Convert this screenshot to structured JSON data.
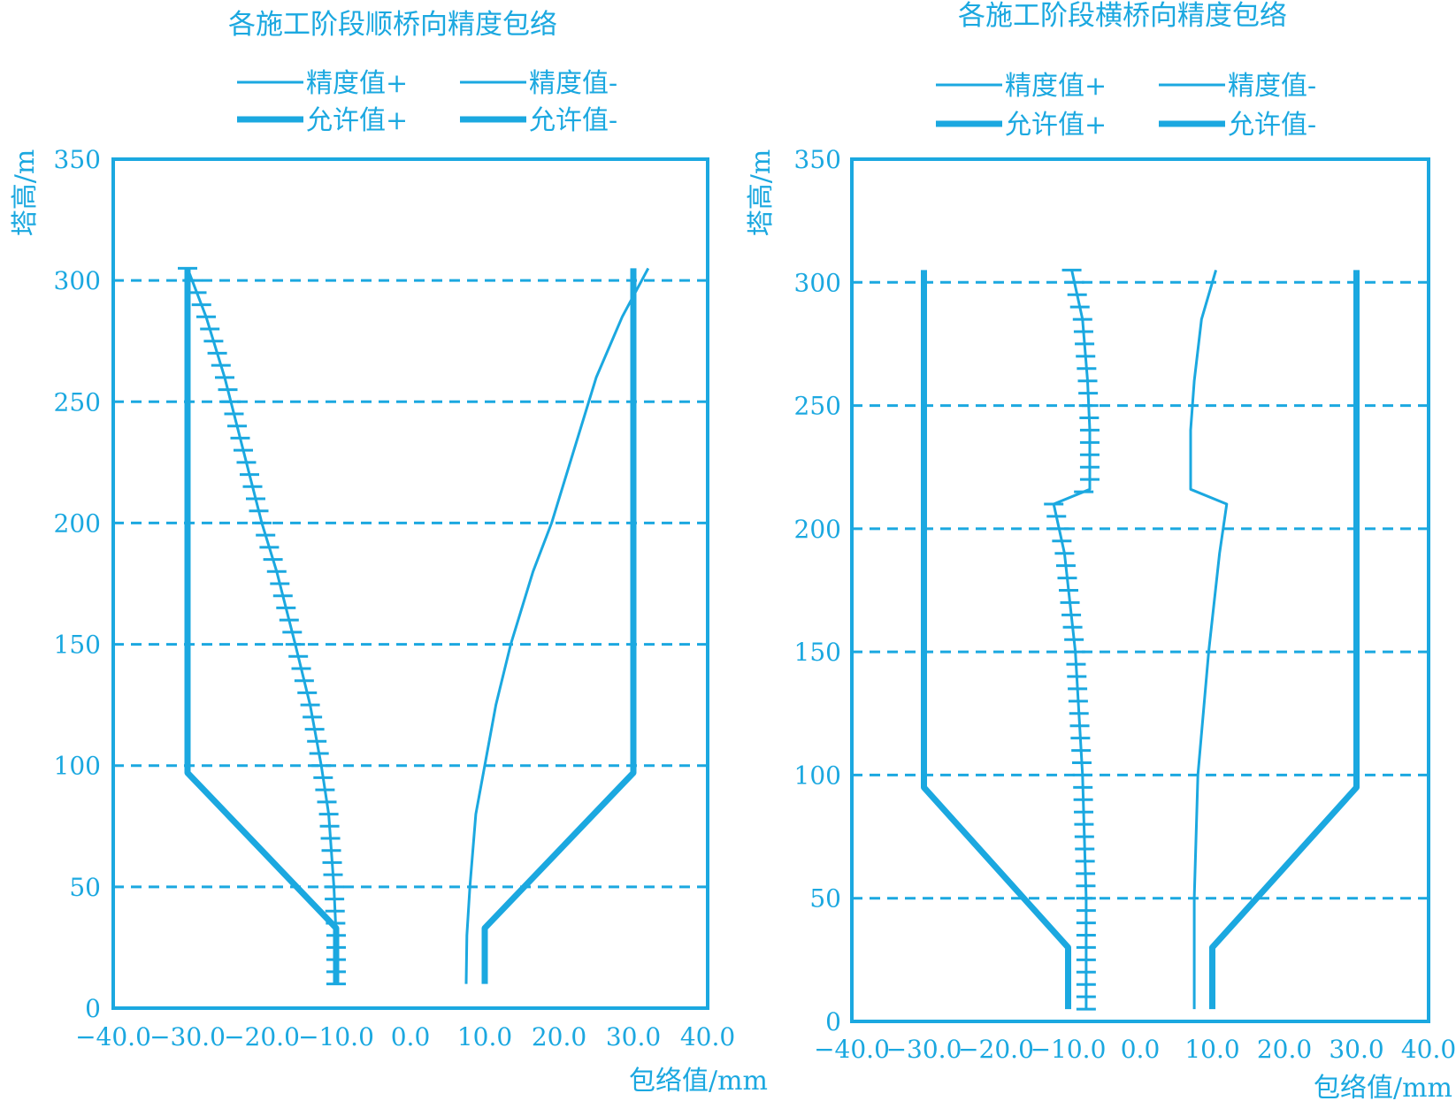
{
  "accent_color": "#1ba8e0",
  "chart_data": [
    {
      "type": "line",
      "title": "各施工阶段顺桥向精度包络",
      "xlabel": "包络值/mm",
      "ylabel": "塔高/m",
      "xlim": [
        -40,
        40
      ],
      "ylim": [
        0,
        350
      ],
      "x_ticks": [
        "-40.0",
        "-30.0",
        "-20.0",
        "-10.0",
        "0.0",
        "10.0",
        "20.0",
        "30.0",
        "40.0"
      ],
      "y_ticks": [
        "0",
        "50",
        "100",
        "150",
        "200",
        "250",
        "300",
        "350"
      ],
      "grid": "horizontal dashed",
      "legend": [
        {
          "label": "精度值+",
          "style": "thin"
        },
        {
          "label": "精度值-",
          "style": "thin"
        },
        {
          "label": "允许值+",
          "style": "thick"
        },
        {
          "label": "允许值-",
          "style": "thick"
        }
      ],
      "series": [
        {
          "name": "精度值+",
          "style": "thin",
          "points": [
            [
              7.5,
              10
            ],
            [
              7.6,
              30
            ],
            [
              8.0,
              50
            ],
            [
              8.8,
              80
            ],
            [
              10.0,
              100
            ],
            [
              11.5,
              125
            ],
            [
              13.5,
              150
            ],
            [
              16.5,
              180
            ],
            [
              19.0,
              200
            ],
            [
              22.0,
              230
            ],
            [
              25.0,
              260
            ],
            [
              28.5,
              285
            ],
            [
              32.0,
              305
            ]
          ]
        },
        {
          "name": "精度值-",
          "style": "ticked",
          "points": [
            [
              -10.0,
              10
            ],
            [
              -10.0,
              30
            ],
            [
              -10.3,
              50
            ],
            [
              -11.0,
              80
            ],
            [
              -12.0,
              100
            ],
            [
              -13.5,
              125
            ],
            [
              -15.5,
              150
            ],
            [
              -18.0,
              180
            ],
            [
              -20.0,
              200
            ],
            [
              -22.5,
              230
            ],
            [
              -25.0,
              260
            ],
            [
              -27.5,
              285
            ],
            [
              -30.0,
              305
            ]
          ]
        },
        {
          "name": "允许值+",
          "style": "thick",
          "points": [
            [
              10,
              10
            ],
            [
              10,
              33
            ],
            [
              30,
              97
            ],
            [
              30,
              305
            ]
          ]
        },
        {
          "name": "允许值-",
          "style": "thick",
          "points": [
            [
              -10,
              10
            ],
            [
              -10,
              33
            ],
            [
              -30,
              97
            ],
            [
              -30,
              305
            ]
          ]
        }
      ]
    },
    {
      "type": "line",
      "title": "各施工阶段横桥向精度包络",
      "xlabel": "包络值/mm",
      "ylabel": "塔高/m",
      "xlim": [
        -40,
        40
      ],
      "ylim": [
        0,
        350
      ],
      "x_ticks": [
        "-40.0",
        "-30.0",
        "-20.0",
        "-10.0",
        "0.0",
        "10.0",
        "20.0",
        "30.0",
        "40.0"
      ],
      "y_ticks": [
        "0",
        "50",
        "100",
        "150",
        "200",
        "250",
        "300",
        "350"
      ],
      "grid": "horizontal dashed",
      "legend": [
        {
          "label": "精度值+",
          "style": "thin"
        },
        {
          "label": "精度值-",
          "style": "thin"
        },
        {
          "label": "允许值+",
          "style": "thick"
        },
        {
          "label": "允许值-",
          "style": "thick"
        }
      ],
      "series": [
        {
          "name": "精度值+",
          "style": "thin",
          "points": [
            [
              7.5,
              5
            ],
            [
              7.5,
              50
            ],
            [
              8.0,
              100
            ],
            [
              9.5,
              150
            ],
            [
              11.0,
              190
            ],
            [
              12.0,
              210
            ],
            [
              7.0,
              216
            ],
            [
              7.0,
              240
            ],
            [
              7.5,
              260
            ],
            [
              8.5,
              285
            ],
            [
              10.5,
              305
            ]
          ]
        },
        {
          "name": "精度值-",
          "style": "ticked",
          "points": [
            [
              -7.5,
              5
            ],
            [
              -7.5,
              50
            ],
            [
              -8.0,
              100
            ],
            [
              -9.0,
              150
            ],
            [
              -10.5,
              190
            ],
            [
              -12.0,
              210
            ],
            [
              -7.0,
              216
            ],
            [
              -7.0,
              240
            ],
            [
              -7.3,
              260
            ],
            [
              -8.0,
              285
            ],
            [
              -9.5,
              305
            ]
          ]
        },
        {
          "name": "允许值+",
          "style": "thick",
          "points": [
            [
              10,
              5
            ],
            [
              10,
              30
            ],
            [
              30,
              95
            ],
            [
              30,
              305
            ]
          ]
        },
        {
          "name": "允许值-",
          "style": "thick",
          "points": [
            [
              -10,
              5
            ],
            [
              -10,
              30
            ],
            [
              -30,
              95
            ],
            [
              -30,
              305
            ]
          ]
        }
      ]
    }
  ]
}
